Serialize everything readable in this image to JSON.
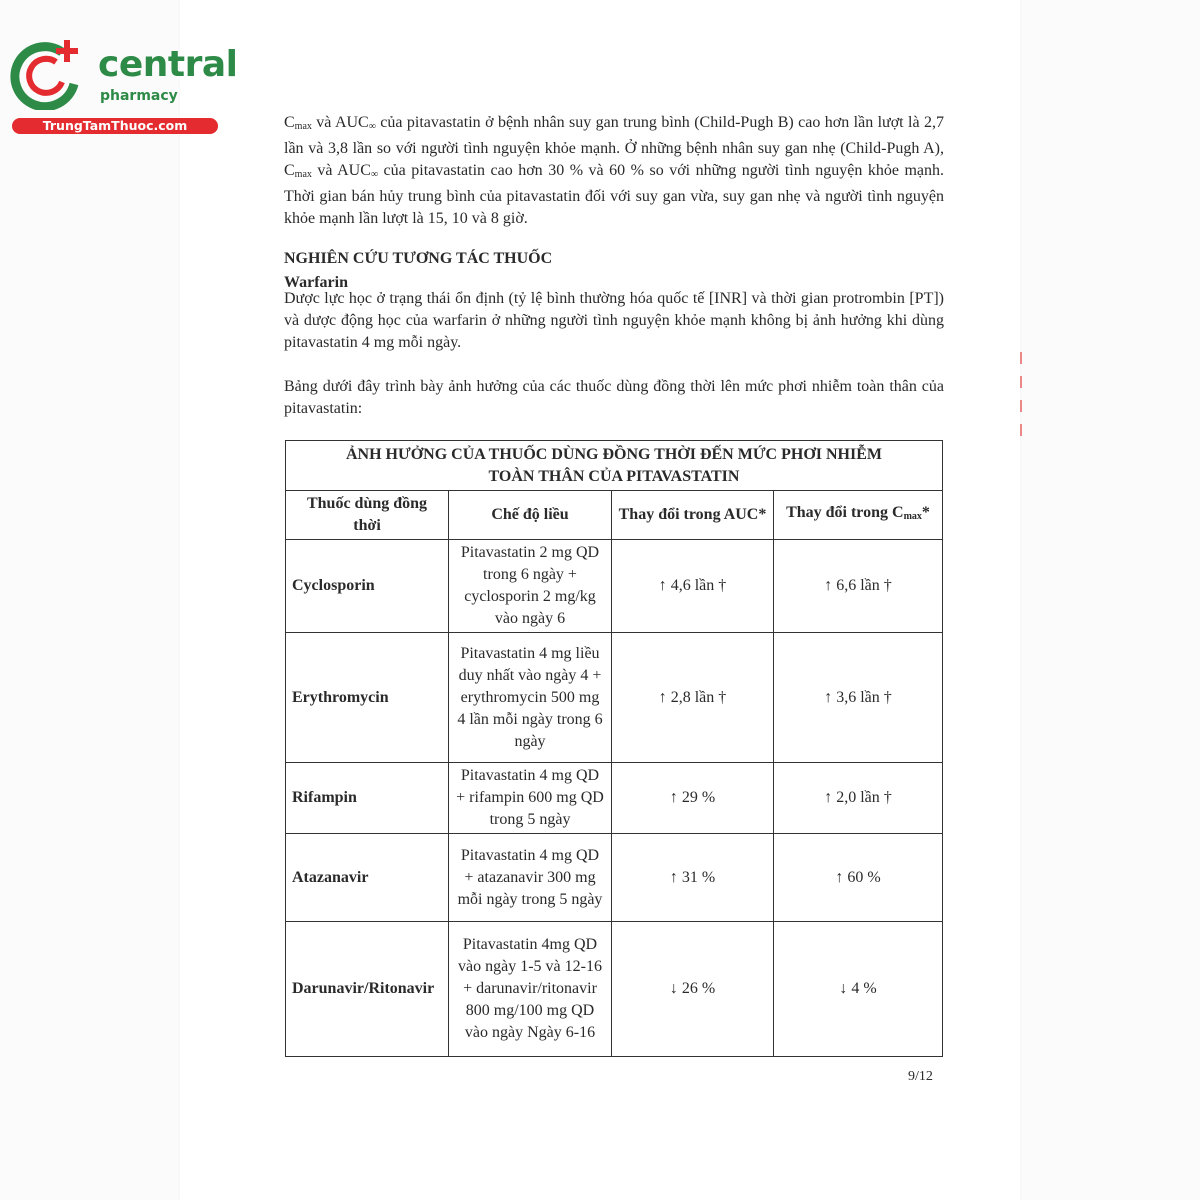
{
  "logo": {
    "brand": "central",
    "subtitle": "pharmacy",
    "website": "TrungTamThuoc.com",
    "colors": {
      "green": "#2e8b47",
      "red": "#e42b2f"
    }
  },
  "paragraph1": [
    {
      "t": "C"
    },
    {
      "sub": "max"
    },
    {
      "t": " và AUC"
    },
    {
      "sub": "∞"
    },
    {
      "t": " của pitavastatin ở bệnh nhân suy gan trung bình (Child-Pugh B) cao hơn lần lượt là 2,7 lần và 3,8 lần so với người tình nguyện khỏe mạnh. Ở những bệnh nhân suy gan nhẹ (Child-Pugh A), C"
    },
    {
      "sub": "max"
    },
    {
      "t": " và AUC"
    },
    {
      "sub": "∞"
    },
    {
      "t": " của pitavastatin cao hơn 30 % và 60 % so với những người tình nguyện khỏe mạnh. Thời gian bán hủy trung bình của pitavastatin đối với suy gan vừa, suy gan nhẹ và người tình nguyện khỏe mạnh lần lượt là 15, 10 và 8 giờ."
    }
  ],
  "section_heading": "NGHIÊN CỨU TƯƠNG TÁC THUỐC",
  "subheading": "Warfarin",
  "paragraph2": "Dược lực học ở trạng thái ổn định (tỷ lệ bình thường hóa quốc tế [INR] và thời gian protrombin [PT]) và dược động học của warfarin ở những người tình nguyện khỏe mạnh không bị ảnh hưởng khi dùng pitavastatin 4 mg mỗi ngày.",
  "paragraph3": "Bảng dưới đây trình bày ảnh hưởng của các thuốc dùng đồng thời lên mức phơi nhiễm toàn thân của pitavastatin:",
  "table": {
    "title": "ẢNH HƯỞNG CỦA THUỐC DÙNG ĐỒNG THỜI ĐẾN MỨC PHƠI NHIỄM TOÀN THÂN CỦA PITAVASTATIN",
    "headers": [
      "Thuốc dùng đồng thời",
      "Chế độ liều",
      "Thay đổi trong AUC*",
      "Thay đổi trong C"
    ],
    "header_cmax_sub": "max",
    "header_cmax_suffix": "*",
    "rows": [
      {
        "drug": "Cyclosporin",
        "regimen": "Pitavastatin 2 mg QD trong 6 ngày + cyclosporin 2 mg/kg vào ngày 6",
        "auc": "↑ 4,6 lần †",
        "cmax": "↑ 6,6 lần †"
      },
      {
        "drug": "Erythromycin",
        "regimen": "Pitavastatin 4 mg liều duy nhất vào ngày 4 + erythromycin 500 mg 4 lần mỗi ngày trong 6 ngày",
        "auc": "↑ 2,8 lần †",
        "cmax": "↑ 3,6 lần †"
      },
      {
        "drug": "Rifampin",
        "regimen": "Pitavastatin 4 mg QD + rifampin 600 mg QD trong 5 ngày",
        "auc": "↑ 29 %",
        "cmax": "↑ 2,0 lần †"
      },
      {
        "drug": "Atazanavir",
        "regimen": "Pitavastatin 4 mg QD + atazanavir 300 mg mỗi ngày trong 5 ngày",
        "auc": "↑ 31 %",
        "cmax": "↑ 60 %"
      },
      {
        "drug": "Darunavir/Ritonavir",
        "regimen": "Pitavastatin 4mg QD vào ngày 1-5 và 12-16 + darunavir/ritonavir 800 mg/100 mg QD vào ngày Ngày 6-16",
        "auc": "↓ 26 %",
        "cmax": "↓ 4 %"
      }
    ]
  },
  "page_number": "9/12"
}
